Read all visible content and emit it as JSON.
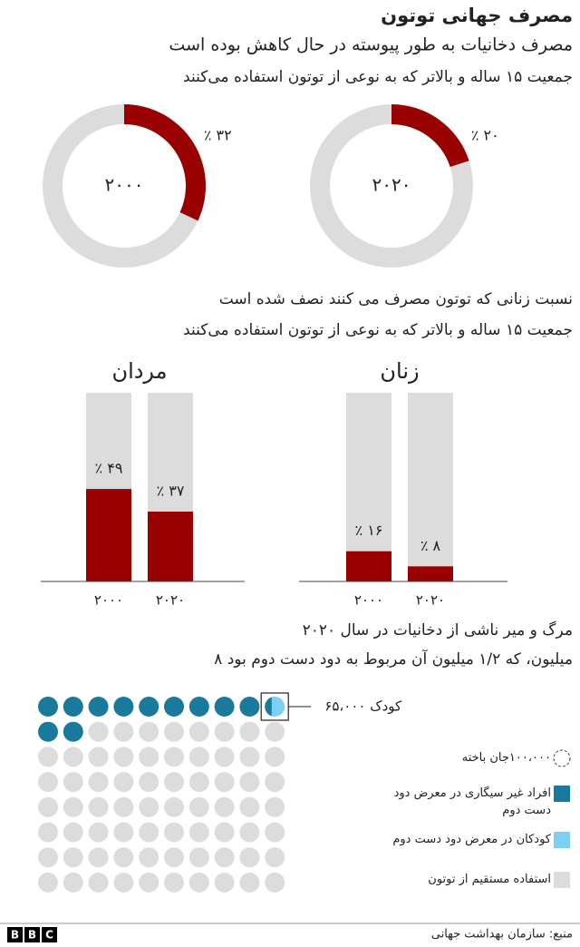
{
  "title": "مصرف جهانی توتون",
  "source": "منبع: سازمان بهداشت جهانی",
  "logo": [
    "B",
    "B",
    "C"
  ],
  "chart_data": [
    {
      "type": "donut",
      "title": "مصرف دخانیات به طور پیوسته در حال کاهش بوده است",
      "subtitle": "جمعیت ۱۵ ساله و بالاتر که به نوعی از توتون استفاده می‌کنند",
      "categories": [
        "۲۰۰۰",
        "۲۰۲۰"
      ],
      "values": [
        32,
        20
      ],
      "value_labels": [
        "٪ ۳۲",
        "٪ ۲۰"
      ],
      "ylim": [
        0,
        100
      ],
      "color": "#990000",
      "track_color": "#dcdcdc"
    },
    {
      "type": "bar",
      "title": "نسبت زنانی که  توتون  مصرف می کنند نصف شده است",
      "subtitle": "جمعیت ۱۵ ساله و بالاتر که به نوعی از توتون استفاده می‌کنند",
      "categories": [
        "۲۰۰۰",
        "۲۰۲۰"
      ],
      "series": [
        {
          "name": "مردان",
          "values": [
            49,
            37
          ],
          "value_labels": [
            "٪ ۴۹",
            "٪ ۳۷"
          ]
        },
        {
          "name": "زنان",
          "values": [
            16,
            8
          ],
          "value_labels": [
            "٪ ۱۶",
            "٪ ۸"
          ]
        }
      ],
      "ylim": [
        0,
        100
      ],
      "color": "#990000",
      "track_color": "#dcdcdc"
    },
    {
      "type": "waffle",
      "title": "مرگ و میر ناشی از دخانیات در سال ۲۰۲۰",
      "subtitle": "۸ میلیون، که ۱/۲ میلیون آن مربوط به دود دست دوم بود",
      "unit": {
        "value": 100000,
        "label": "۱۰۰،۰۰۰جان باخته"
      },
      "series": [
        {
          "name": "افراد غیر سیگاری در معرض دود دست دوم",
          "color": "#1a7a9c",
          "values": [
            1135000
          ]
        },
        {
          "name": "کودکان در معرض دود دست دوم",
          "color": "#7ed0f2",
          "values": [
            65000
          ],
          "value_labels": [
            "۶۵،۰۰۰ کودک"
          ]
        },
        {
          "name": "استفاده مستقیم از توتون",
          "color": "#dcdcdc",
          "values": [
            6800000
          ]
        }
      ]
    }
  ]
}
